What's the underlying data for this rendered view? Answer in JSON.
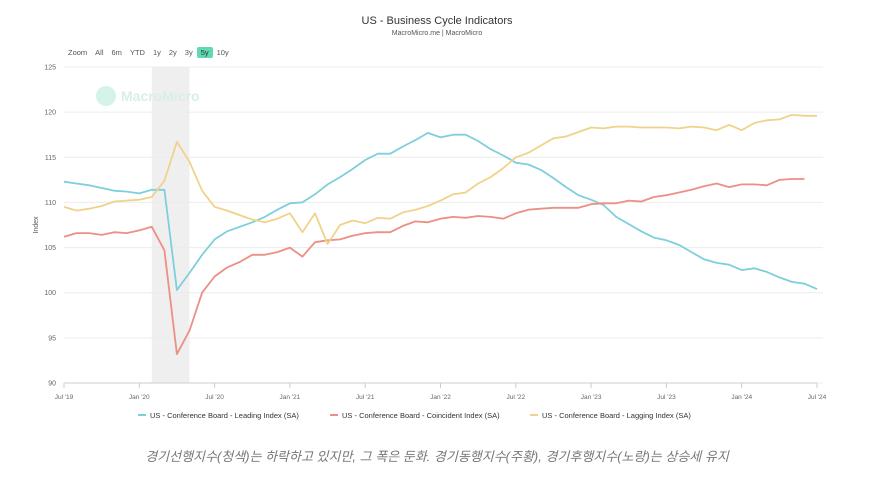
{
  "header": {
    "title": "US - Business Cycle Indicators",
    "subtitle": "MacroMicro.me | MacroMicro"
  },
  "zoom": {
    "label": "Zoom",
    "buttons": [
      "All",
      "6m",
      "YTD",
      "1y",
      "2y",
      "3y",
      "5y",
      "10y"
    ],
    "active": "5y"
  },
  "watermark": "MacroMicro",
  "caption": "경기선행지수(청색)는 하락하고 있지만, 그 폭은 둔화. 경기동행지수(주황), 경기후행지수(노랑)는 상승세 유지",
  "chart_data": {
    "type": "line",
    "title": "US - Business Cycle Indicators",
    "ylabel": "Index",
    "ylim": [
      90,
      125
    ],
    "yticks": [
      90,
      95,
      100,
      105,
      110,
      115,
      120,
      125
    ],
    "x_start": "2019-07",
    "x_unit": "month",
    "xticks": [
      {
        "m": 0,
        "label": "Jul '19"
      },
      {
        "m": 6,
        "label": "Jan '20"
      },
      {
        "m": 12,
        "label": "Jul '20"
      },
      {
        "m": 18,
        "label": "Jan '21"
      },
      {
        "m": 24,
        "label": "Jul '21"
      },
      {
        "m": 30,
        "label": "Jan '22"
      },
      {
        "m": 36,
        "label": "Jul '22"
      },
      {
        "m": 42,
        "label": "Jan '23"
      },
      {
        "m": 48,
        "label": "Jul '23"
      },
      {
        "m": 54,
        "label": "Jan '24"
      },
      {
        "m": 60,
        "label": "Jul '24"
      }
    ],
    "recession_band": [
      7,
      10
    ],
    "legend_position": "bottom",
    "series": [
      {
        "name": "US - Conference Board - Leading Index (SA)",
        "color": "#7ecfdc",
        "values": [
          112.3,
          112.1,
          111.9,
          111.6,
          111.3,
          111.2,
          111.0,
          111.4,
          111.4,
          100.3,
          102.2,
          104.2,
          105.9,
          106.8,
          107.3,
          107.8,
          108.4,
          109.2,
          109.9,
          110.0,
          110.9,
          112.0,
          112.8,
          113.7,
          114.7,
          115.4,
          115.4,
          116.2,
          116.9,
          117.7,
          117.2,
          117.5,
          117.5,
          116.8,
          115.9,
          115.2,
          114.4,
          114.2,
          113.6,
          112.7,
          111.7,
          110.8,
          110.3,
          109.7,
          108.4,
          107.6,
          106.8,
          106.1,
          105.8,
          105.3,
          104.5,
          103.7,
          103.3,
          103.1,
          102.5,
          102.7,
          102.3,
          101.7,
          101.2,
          101.0,
          100.4
        ]
      },
      {
        "name": "US - Conference Board - Coincident Index (SA)",
        "color": "#ec8f85",
        "values": [
          106.2,
          106.6,
          106.6,
          106.4,
          106.7,
          106.6,
          106.9,
          107.3,
          104.7,
          93.2,
          95.8,
          100.0,
          101.8,
          102.8,
          103.4,
          104.2,
          104.2,
          104.5,
          105.0,
          104.0,
          105.6,
          105.8,
          105.9,
          106.3,
          106.6,
          106.7,
          106.7,
          107.4,
          107.9,
          107.8,
          108.2,
          108.4,
          108.3,
          108.5,
          108.4,
          108.2,
          108.8,
          109.2,
          109.3,
          109.4,
          109.4,
          109.4,
          109.8,
          109.9,
          109.9,
          110.2,
          110.1,
          110.6,
          110.8,
          111.1,
          111.4,
          111.8,
          112.1,
          111.7,
          112.0,
          112.0,
          111.9,
          112.5,
          112.6,
          112.6
        ]
      },
      {
        "name": "US - Conference Board - Lagging Index (SA)",
        "color": "#f0d38a",
        "values": [
          109.5,
          109.1,
          109.3,
          109.6,
          110.1,
          110.2,
          110.3,
          110.6,
          112.4,
          116.7,
          114.5,
          111.3,
          109.5,
          109.1,
          108.6,
          108.1,
          107.8,
          108.2,
          108.8,
          106.7,
          108.8,
          105.4,
          107.5,
          108.0,
          107.7,
          108.3,
          108.2,
          108.9,
          109.2,
          109.6,
          110.2,
          110.9,
          111.1,
          112.1,
          112.8,
          113.8,
          115.0,
          115.5,
          116.3,
          117.1,
          117.3,
          117.8,
          118.3,
          118.2,
          118.4,
          118.4,
          118.3,
          118.3,
          118.3,
          118.2,
          118.4,
          118.3,
          118.0,
          118.6,
          118.0,
          118.8,
          119.1,
          119.2,
          119.7,
          119.6,
          119.6
        ]
      }
    ]
  }
}
